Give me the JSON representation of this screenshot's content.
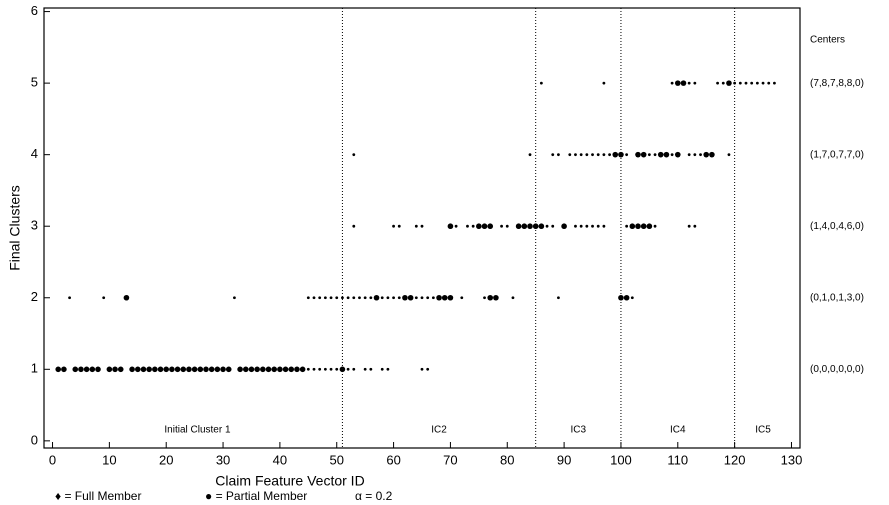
{
  "chart_data": {
    "type": "scatter",
    "x_label": "Claim Feature Vector ID",
    "y_label": "Final Clusters",
    "xlim": [
      -1.5,
      131.5
    ],
    "ylim": [
      -0.1,
      6.05
    ],
    "xticks": [
      0,
      10,
      20,
      30,
      40,
      50,
      60,
      70,
      80,
      90,
      100,
      110,
      120,
      130
    ],
    "yticks": [
      0,
      1,
      2,
      3,
      4,
      5,
      6
    ],
    "dividers": [
      51,
      85,
      100,
      120
    ],
    "regions": [
      "Initial Cluster 1",
      "IC2",
      "IC3",
      "IC4",
      "IC5"
    ],
    "centers": {
      "title": "Centers",
      "labels": [
        "(0,0,0,0,0,0)",
        "(0,1,0,1,3,0)",
        "(1,4,0,4,6,0)",
        "(1,7,0,7,7,0)",
        "(7,8,7,8,8,0)"
      ],
      "y": [
        1,
        2,
        3,
        4,
        5
      ]
    },
    "legend": [
      "♦ = Full Member",
      "● = Partial Member",
      "α = 0.2"
    ],
    "series": [
      {
        "color": "#000000",
        "marker_radius": 1.4,
        "points": [
          [
            3,
            2
          ],
          [
            9,
            2
          ],
          [
            32,
            2
          ],
          [
            45,
            2
          ],
          [
            46,
            2
          ],
          [
            47,
            2
          ],
          [
            48,
            2
          ],
          [
            49,
            2
          ],
          [
            50,
            2
          ],
          [
            51,
            2
          ],
          [
            52,
            2
          ],
          [
            53,
            2
          ],
          [
            54,
            2
          ],
          [
            55,
            2
          ],
          [
            56,
            2
          ],
          [
            58,
            2
          ],
          [
            59,
            2
          ],
          [
            60,
            2
          ],
          [
            61,
            2
          ],
          [
            64,
            2
          ],
          [
            65,
            2
          ],
          [
            66,
            2
          ],
          [
            67,
            2
          ],
          [
            72,
            2
          ],
          [
            76,
            2
          ],
          [
            81,
            2
          ],
          [
            89,
            2
          ],
          [
            102,
            2
          ],
          [
            45,
            1
          ],
          [
            46,
            1
          ],
          [
            47,
            1
          ],
          [
            48,
            1
          ],
          [
            49,
            1
          ],
          [
            50,
            1
          ],
          [
            52,
            1
          ],
          [
            53,
            1
          ],
          [
            55,
            1
          ],
          [
            56,
            1
          ],
          [
            58,
            1
          ],
          [
            59,
            1
          ],
          [
            65,
            1
          ],
          [
            66,
            1
          ],
          [
            53,
            3
          ],
          [
            60,
            3
          ],
          [
            61,
            3
          ],
          [
            64,
            3
          ],
          [
            65,
            3
          ],
          [
            71,
            3
          ],
          [
            73,
            3
          ],
          [
            74,
            3
          ],
          [
            79,
            3
          ],
          [
            80,
            3
          ],
          [
            87,
            3
          ],
          [
            88,
            3
          ],
          [
            92,
            3
          ],
          [
            93,
            3
          ],
          [
            94,
            3
          ],
          [
            95,
            3
          ],
          [
            96,
            3
          ],
          [
            97,
            3
          ],
          [
            101,
            3
          ],
          [
            106,
            3
          ],
          [
            112,
            3
          ],
          [
            113,
            3
          ],
          [
            53,
            4
          ],
          [
            84,
            4
          ],
          [
            88,
            4
          ],
          [
            89,
            4
          ],
          [
            91,
            4
          ],
          [
            92,
            4
          ],
          [
            93,
            4
          ],
          [
            94,
            4
          ],
          [
            95,
            4
          ],
          [
            96,
            4
          ],
          [
            97,
            4
          ],
          [
            98,
            4
          ],
          [
            101,
            4
          ],
          [
            105,
            4
          ],
          [
            106,
            4
          ],
          [
            109,
            4
          ],
          [
            112,
            4
          ],
          [
            113,
            4
          ],
          [
            114,
            4
          ],
          [
            119,
            4
          ],
          [
            86,
            5
          ],
          [
            97,
            5
          ],
          [
            109,
            5
          ],
          [
            112,
            5
          ],
          [
            113,
            5
          ],
          [
            117,
            5
          ],
          [
            118,
            5
          ],
          [
            120,
            5
          ],
          [
            121,
            5
          ],
          [
            122,
            5
          ],
          [
            123,
            5
          ],
          [
            124,
            5
          ],
          [
            125,
            5
          ],
          [
            126,
            5
          ],
          [
            127,
            5
          ]
        ]
      },
      {
        "color": "#000000",
        "marker_radius": 2.8,
        "points": [
          [
            1,
            1
          ],
          [
            2,
            1
          ],
          [
            4,
            1
          ],
          [
            5,
            1
          ],
          [
            6,
            1
          ],
          [
            7,
            1
          ],
          [
            8,
            1
          ],
          [
            10,
            1
          ],
          [
            11,
            1
          ],
          [
            12,
            1
          ],
          [
            14,
            1
          ],
          [
            15,
            1
          ],
          [
            16,
            1
          ],
          [
            17,
            1
          ],
          [
            18,
            1
          ],
          [
            19,
            1
          ],
          [
            20,
            1
          ],
          [
            21,
            1
          ],
          [
            22,
            1
          ],
          [
            23,
            1
          ],
          [
            24,
            1
          ],
          [
            25,
            1
          ],
          [
            26,
            1
          ],
          [
            27,
            1
          ],
          [
            28,
            1
          ],
          [
            29,
            1
          ],
          [
            30,
            1
          ],
          [
            31,
            1
          ],
          [
            33,
            1
          ],
          [
            34,
            1
          ],
          [
            35,
            1
          ],
          [
            36,
            1
          ],
          [
            37,
            1
          ],
          [
            38,
            1
          ],
          [
            39,
            1
          ],
          [
            40,
            1
          ],
          [
            41,
            1
          ],
          [
            42,
            1
          ],
          [
            43,
            1
          ],
          [
            44,
            1
          ],
          [
            51,
            1
          ],
          [
            13,
            2
          ],
          [
            57,
            2
          ],
          [
            62,
            2
          ],
          [
            63,
            2
          ],
          [
            68,
            2
          ],
          [
            69,
            2
          ],
          [
            70,
            2
          ],
          [
            77,
            2
          ],
          [
            78,
            2
          ],
          [
            100,
            2
          ],
          [
            101,
            2
          ],
          [
            70,
            3
          ],
          [
            75,
            3
          ],
          [
            76,
            3
          ],
          [
            77,
            3
          ],
          [
            82,
            3
          ],
          [
            83,
            3
          ],
          [
            84,
            3
          ],
          [
            85,
            3
          ],
          [
            86,
            3
          ],
          [
            90,
            3
          ],
          [
            102,
            3
          ],
          [
            103,
            3
          ],
          [
            104,
            3
          ],
          [
            105,
            3
          ],
          [
            99,
            4
          ],
          [
            100,
            4
          ],
          [
            103,
            4
          ],
          [
            104,
            4
          ],
          [
            107,
            4
          ],
          [
            108,
            4
          ],
          [
            110,
            4
          ],
          [
            115,
            4
          ],
          [
            116,
            4
          ],
          [
            110,
            5
          ],
          [
            111,
            5
          ],
          [
            119,
            5
          ]
        ]
      }
    ]
  }
}
